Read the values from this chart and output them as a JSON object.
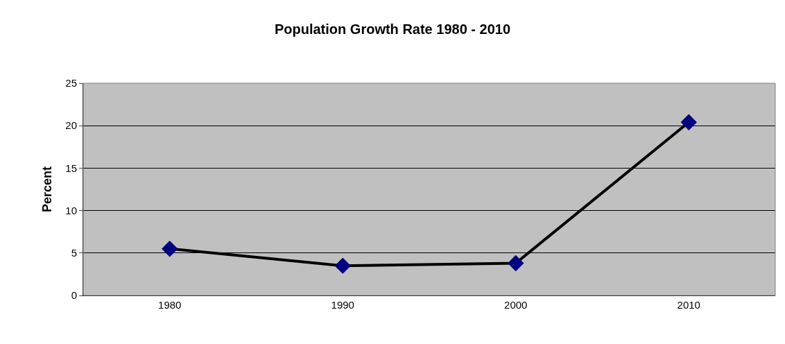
{
  "chart_data": {
    "type": "line",
    "title": "Population Growth Rate 1980 - 2010",
    "ylabel": "Percent",
    "categories": [
      "1980",
      "1990",
      "2000",
      "2010"
    ],
    "series": [
      {
        "color": "#000080",
        "values": [
          5.5,
          3.5,
          3.8,
          20.4
        ]
      }
    ],
    "ylim": [
      0,
      25
    ],
    "yticks": [
      0,
      5,
      10,
      15,
      20,
      25
    ],
    "grid": "y",
    "marker": "diamond",
    "line_style": "solid"
  }
}
